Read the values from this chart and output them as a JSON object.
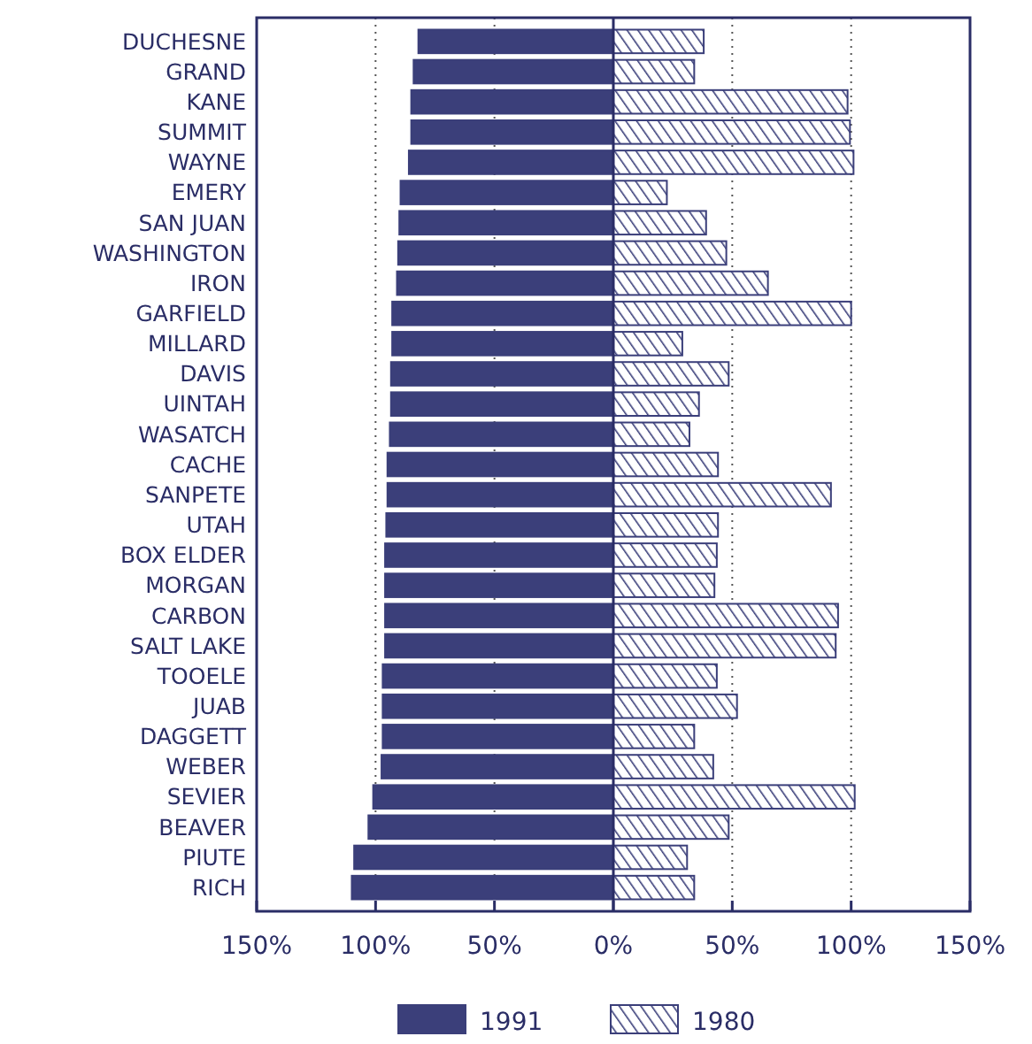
{
  "chart_data": {
    "type": "bar",
    "orientation": "horizontal",
    "categories": [
      "DUCHESNE",
      "GRAND",
      "KANE",
      "SUMMIT",
      "WAYNE",
      "EMERY",
      "SAN JUAN",
      "WASHINGTON",
      "IRON",
      "GARFIELD",
      "MILLARD",
      "DAVIS",
      "UINTAH",
      "WASATCH",
      "CACHE",
      "SANPETE",
      "UTAH",
      "BOX ELDER",
      "MORGAN",
      "CARBON",
      "SALT LAKE",
      "TOOELE",
      "JUAB",
      "DAGGETT",
      "WEBER",
      "SEVIER",
      "BEAVER",
      "PIUTE",
      "RICH"
    ],
    "series": [
      {
        "name": "1991",
        "color": "#3b3f7a",
        "values": [
          -82,
          -84,
          -85,
          -85,
          -86,
          -89.5,
          -90,
          -90.5,
          -91,
          -93,
          -93,
          -93.5,
          -93.5,
          -94,
          -95,
          -95,
          -95.5,
          -96,
          -96,
          -96,
          -96,
          -97,
          -97,
          -97,
          -97.5,
          -101,
          -103,
          -109,
          -110
        ]
      },
      {
        "name": "1980",
        "color": "#3b3f7a",
        "values": [
          38,
          34,
          98.5,
          99.5,
          101,
          22.5,
          39,
          47.5,
          65,
          100,
          29,
          48.5,
          36,
          32,
          44,
          91.5,
          44,
          43.5,
          42.5,
          94.5,
          93.5,
          43.5,
          52,
          34,
          42,
          101.5,
          48.5,
          31,
          34
        ]
      }
    ],
    "xlim": [
      -150,
      150
    ],
    "xticks": [
      {
        "value": -150,
        "label": "150%"
      },
      {
        "value": -100,
        "label": "100%"
      },
      {
        "value": -50,
        "label": "50%"
      },
      {
        "value": 0,
        "label": "0%"
      },
      {
        "value": 50,
        "label": "50%"
      },
      {
        "value": 100,
        "label": "100%"
      },
      {
        "value": 150,
        "label": "150%"
      }
    ],
    "stacked": true,
    "ref_lines": [
      {
        "axis": "x",
        "value": 0
      }
    ],
    "grid": "x",
    "legend": "bottom"
  }
}
